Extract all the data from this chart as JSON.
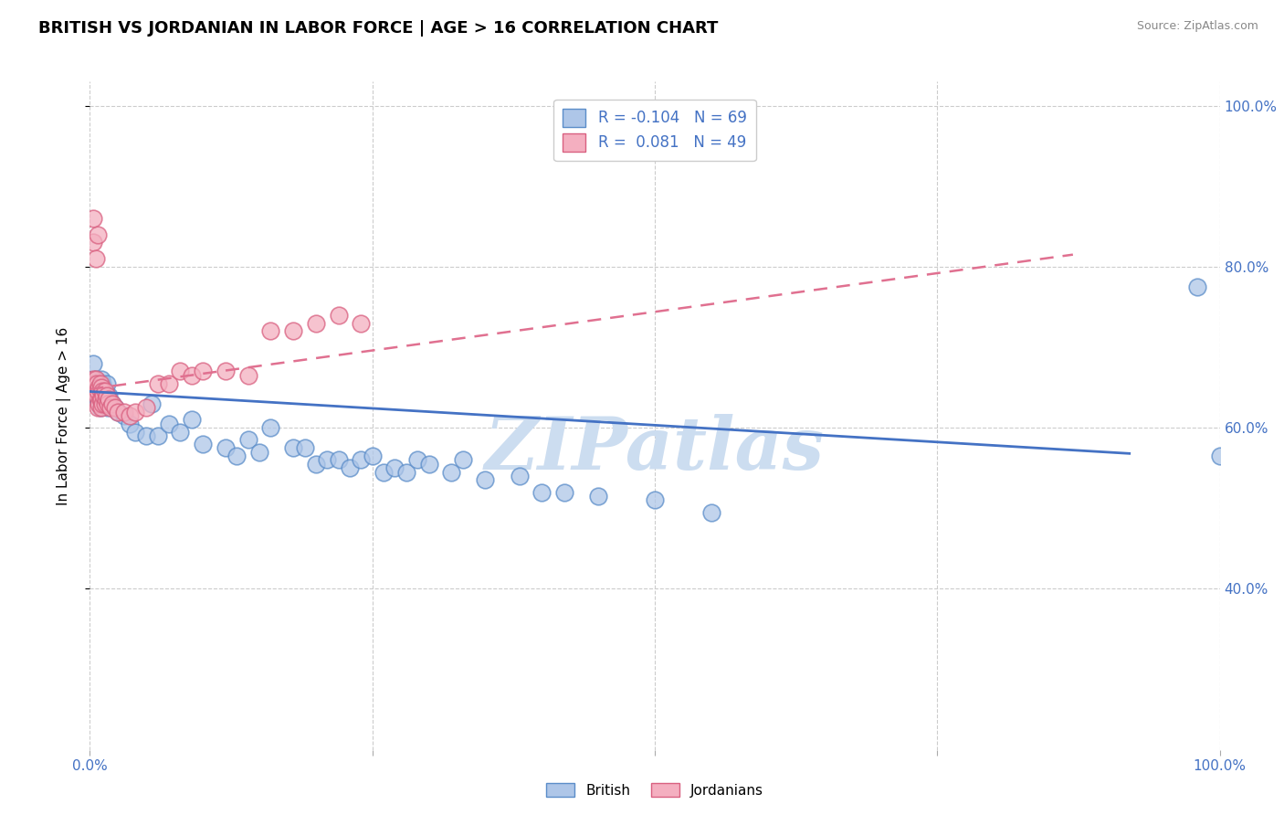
{
  "title": "BRITISH VS JORDANIAN IN LABOR FORCE | AGE > 16 CORRELATION CHART",
  "source_text": "Source: ZipAtlas.com",
  "ylabel": "In Labor Force | Age > 16",
  "xlim": [
    0.0,
    1.0
  ],
  "ylim": [
    0.2,
    1.03
  ],
  "british_R": -0.104,
  "british_N": 69,
  "jordanian_R": 0.081,
  "jordanian_N": 49,
  "british_color": "#aec6e8",
  "jordanian_color": "#f4afc0",
  "british_edge_color": "#5b8dc9",
  "jordanian_edge_color": "#d96080",
  "british_line_color": "#4472c4",
  "jordanian_line_color": "#e07090",
  "background_color": "#ffffff",
  "grid_color": "#cccccc",
  "watermark": "ZIPatlas",
  "watermark_color": "#ccddf0",
  "tick_color": "#4472c4",
  "title_color": "#000000",
  "source_color": "#888888",
  "ylabel_color": "#000000",
  "british_trend_x0": 0.0,
  "british_trend_x1": 0.92,
  "british_trend_y0": 0.645,
  "british_trend_y1": 0.568,
  "jordanian_trend_x0": 0.0,
  "jordanian_trend_x1": 0.87,
  "jordanian_trend_y0": 0.648,
  "jordanian_trend_y1": 0.815,
  "british_x": [
    0.003,
    0.004,
    0.005,
    0.005,
    0.006,
    0.006,
    0.007,
    0.007,
    0.008,
    0.008,
    0.009,
    0.009,
    0.01,
    0.01,
    0.01,
    0.011,
    0.011,
    0.012,
    0.012,
    0.013,
    0.013,
    0.014,
    0.015,
    0.015,
    0.016,
    0.017,
    0.018,
    0.02,
    0.022,
    0.025,
    0.03,
    0.035,
    0.04,
    0.05,
    0.055,
    0.06,
    0.07,
    0.08,
    0.09,
    0.1,
    0.12,
    0.13,
    0.14,
    0.15,
    0.16,
    0.18,
    0.19,
    0.2,
    0.21,
    0.22,
    0.23,
    0.24,
    0.25,
    0.26,
    0.27,
    0.28,
    0.29,
    0.3,
    0.32,
    0.33,
    0.35,
    0.38,
    0.4,
    0.42,
    0.45,
    0.5,
    0.55,
    0.98,
    1.0
  ],
  "british_y": [
    0.68,
    0.655,
    0.66,
    0.64,
    0.655,
    0.64,
    0.65,
    0.635,
    0.655,
    0.64,
    0.645,
    0.625,
    0.66,
    0.645,
    0.63,
    0.655,
    0.635,
    0.65,
    0.635,
    0.645,
    0.63,
    0.64,
    0.655,
    0.64,
    0.625,
    0.64,
    0.63,
    0.63,
    0.625,
    0.62,
    0.615,
    0.605,
    0.595,
    0.59,
    0.63,
    0.59,
    0.605,
    0.595,
    0.61,
    0.58,
    0.575,
    0.565,
    0.585,
    0.57,
    0.6,
    0.575,
    0.575,
    0.555,
    0.56,
    0.56,
    0.55,
    0.56,
    0.565,
    0.545,
    0.55,
    0.545,
    0.56,
    0.555,
    0.545,
    0.56,
    0.535,
    0.54,
    0.52,
    0.52,
    0.515,
    0.51,
    0.495,
    0.775,
    0.565
  ],
  "jordanian_x": [
    0.003,
    0.004,
    0.004,
    0.005,
    0.005,
    0.006,
    0.006,
    0.007,
    0.007,
    0.008,
    0.008,
    0.009,
    0.009,
    0.01,
    0.01,
    0.01,
    0.011,
    0.011,
    0.012,
    0.013,
    0.013,
    0.014,
    0.015,
    0.016,
    0.017,
    0.018,
    0.02,
    0.022,
    0.025,
    0.03,
    0.035,
    0.04,
    0.05,
    0.06,
    0.07,
    0.08,
    0.09,
    0.1,
    0.12,
    0.14,
    0.16,
    0.18,
    0.2,
    0.22,
    0.24,
    0.003,
    0.005,
    0.007,
    0.003
  ],
  "jordanian_y": [
    0.66,
    0.655,
    0.645,
    0.66,
    0.645,
    0.655,
    0.64,
    0.645,
    0.625,
    0.65,
    0.63,
    0.655,
    0.635,
    0.65,
    0.635,
    0.625,
    0.645,
    0.63,
    0.64,
    0.645,
    0.63,
    0.635,
    0.64,
    0.63,
    0.635,
    0.625,
    0.63,
    0.625,
    0.62,
    0.62,
    0.615,
    0.62,
    0.625,
    0.655,
    0.655,
    0.67,
    0.665,
    0.67,
    0.67,
    0.665,
    0.72,
    0.72,
    0.73,
    0.74,
    0.73,
    0.83,
    0.81,
    0.84,
    0.86
  ]
}
